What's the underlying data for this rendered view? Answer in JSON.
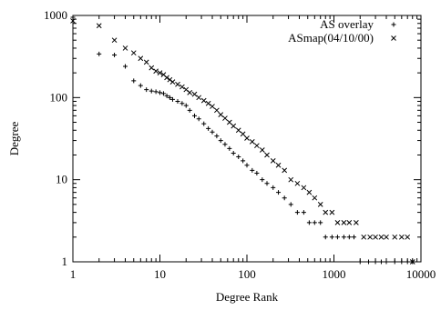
{
  "chart_data": {
    "type": "scatter",
    "title": "",
    "xlabel": "Degree Rank",
    "ylabel": "Degree",
    "xscale": "log",
    "yscale": "log",
    "xlim": [
      1,
      10000
    ],
    "ylim": [
      1,
      1000
    ],
    "x_major_ticks": [
      1,
      10,
      100,
      1000,
      10000
    ],
    "x_tick_labels": [
      "1",
      "10",
      "100",
      "1000",
      "10000"
    ],
    "y_major_ticks": [
      1,
      10,
      100,
      1000
    ],
    "y_tick_labels": [
      "1",
      "10",
      "100",
      "1000"
    ],
    "grid": false,
    "legend_position": "top-right",
    "series": [
      {
        "name": "AS overlay",
        "marker": "plus",
        "color": "#000000",
        "points": [
          [
            1,
            950
          ],
          [
            2,
            340
          ],
          [
            3,
            330
          ],
          [
            4,
            240
          ],
          [
            5,
            160
          ],
          [
            6,
            140
          ],
          [
            7,
            125
          ],
          [
            8,
            120
          ],
          [
            9,
            118
          ],
          [
            10,
            115
          ],
          [
            11,
            112
          ],
          [
            12,
            105
          ],
          [
            13,
            100
          ],
          [
            14,
            95
          ],
          [
            16,
            90
          ],
          [
            18,
            85
          ],
          [
            20,
            80
          ],
          [
            22,
            70
          ],
          [
            25,
            60
          ],
          [
            28,
            55
          ],
          [
            32,
            48
          ],
          [
            36,
            42
          ],
          [
            40,
            38
          ],
          [
            45,
            34
          ],
          [
            50,
            30
          ],
          [
            56,
            27
          ],
          [
            63,
            24
          ],
          [
            70,
            21
          ],
          [
            80,
            19
          ],
          [
            90,
            17
          ],
          [
            100,
            15
          ],
          [
            115,
            13
          ],
          [
            130,
            12
          ],
          [
            150,
            10
          ],
          [
            170,
            9
          ],
          [
            200,
            8
          ],
          [
            230,
            7
          ],
          [
            270,
            6
          ],
          [
            320,
            5
          ],
          [
            380,
            4
          ],
          [
            450,
            4
          ],
          [
            520,
            3
          ],
          [
            600,
            3
          ],
          [
            700,
            3
          ],
          [
            800,
            2
          ],
          [
            950,
            2
          ],
          [
            1100,
            2
          ],
          [
            1300,
            2
          ],
          [
            1500,
            2
          ],
          [
            1700,
            2
          ],
          [
            2000,
            1
          ],
          [
            2500,
            1
          ],
          [
            3000,
            1
          ],
          [
            3500,
            1
          ],
          [
            4000,
            1
          ],
          [
            5000,
            1
          ],
          [
            6000,
            1
          ],
          [
            7000,
            1
          ],
          [
            8000,
            1
          ]
        ]
      },
      {
        "name": "ASmap(04/10/00)",
        "marker": "cross",
        "color": "#000000",
        "points": [
          [
            1,
            860
          ],
          [
            2,
            750
          ],
          [
            3,
            500
          ],
          [
            4,
            400
          ],
          [
            5,
            350
          ],
          [
            6,
            300
          ],
          [
            7,
            270
          ],
          [
            8,
            230
          ],
          [
            9,
            210
          ],
          [
            10,
            200
          ],
          [
            11,
            190
          ],
          [
            12,
            175
          ],
          [
            13,
            165
          ],
          [
            14,
            155
          ],
          [
            16,
            145
          ],
          [
            18,
            135
          ],
          [
            20,
            125
          ],
          [
            22,
            115
          ],
          [
            25,
            110
          ],
          [
            28,
            100
          ],
          [
            32,
            92
          ],
          [
            36,
            85
          ],
          [
            40,
            78
          ],
          [
            45,
            70
          ],
          [
            50,
            62
          ],
          [
            56,
            56
          ],
          [
            63,
            50
          ],
          [
            70,
            45
          ],
          [
            80,
            40
          ],
          [
            90,
            36
          ],
          [
            100,
            32
          ],
          [
            115,
            29
          ],
          [
            130,
            26
          ],
          [
            150,
            23
          ],
          [
            170,
            20
          ],
          [
            200,
            17
          ],
          [
            230,
            15
          ],
          [
            270,
            13
          ],
          [
            320,
            10
          ],
          [
            380,
            9
          ],
          [
            450,
            8
          ],
          [
            520,
            7
          ],
          [
            600,
            6
          ],
          [
            700,
            5
          ],
          [
            800,
            4
          ],
          [
            950,
            4
          ],
          [
            1100,
            3
          ],
          [
            1300,
            3
          ],
          [
            1500,
            3
          ],
          [
            1800,
            3
          ],
          [
            2200,
            2
          ],
          [
            2600,
            2
          ],
          [
            3000,
            2
          ],
          [
            3500,
            2
          ],
          [
            4000,
            2
          ],
          [
            5000,
            2
          ],
          [
            6000,
            2
          ],
          [
            7000,
            2
          ],
          [
            8000,
            1
          ]
        ]
      }
    ]
  }
}
